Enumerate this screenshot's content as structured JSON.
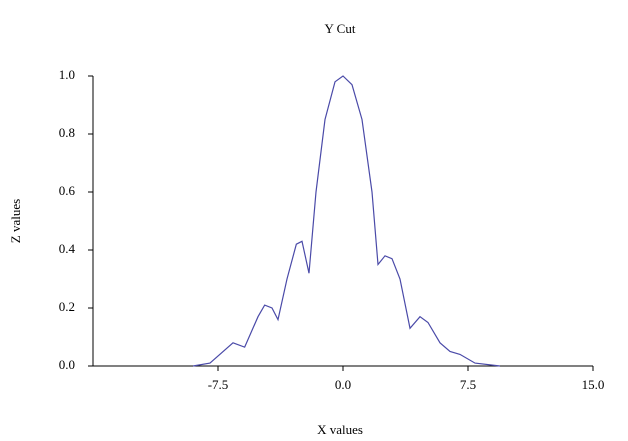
{
  "chart_data": {
    "type": "line",
    "title": "Y Cut",
    "x_label": "X values",
    "y_label": "Z values",
    "x": [
      -9.0,
      -7.98,
      -6.6,
      -5.9,
      -5.1,
      -4.7,
      -4.26,
      -3.9,
      -3.36,
      -2.8,
      -2.46,
      -2.04,
      -1.62,
      -1.08,
      -0.48,
      0,
      0.54,
      1.14,
      1.74,
      2.1,
      2.52,
      2.94,
      3.42,
      4.02,
      4.62,
      5.1,
      5.82,
      6.42,
      7.02,
      7.92,
      9.42
    ],
    "series": [
      {
        "name": "Y Cut",
        "color": "#4a4aa8",
        "values": [
          0.0,
          0.01,
          0.08,
          0.065,
          0.17,
          0.21,
          0.2,
          0.16,
          0.3,
          0.42,
          0.43,
          0.32,
          0.6,
          0.85,
          0.98,
          1.0,
          0.97,
          0.85,
          0.6,
          0.35,
          0.38,
          0.37,
          0.3,
          0.13,
          0.17,
          0.15,
          0.08,
          0.05,
          0.04,
          0.01,
          0.0
        ]
      }
    ],
    "xlim": [
      -15,
      15
    ],
    "xticks": [
      -7.5,
      {
        "value": 0,
        "label": "0.0"
      },
      7.5,
      {
        "value": 15,
        "label": "15.0"
      }
    ],
    "ylim": [
      0,
      1
    ],
    "yticks": [
      {
        "value": 0,
        "label": "0.0"
      },
      0.2,
      0.4,
      0.6,
      0.8,
      {
        "value": 1,
        "label": "1.0"
      }
    ]
  }
}
